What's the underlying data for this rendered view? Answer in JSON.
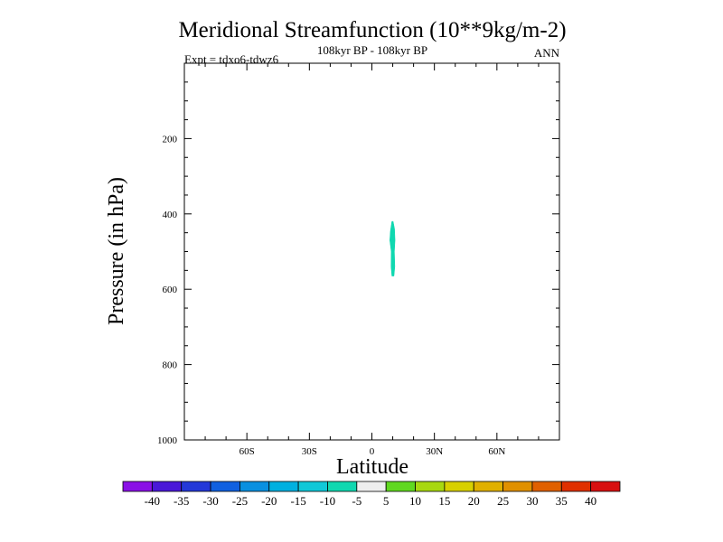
{
  "chart_data": {
    "type": "contour",
    "title": "Meridional Streamfunction (10**9kg/m-2)",
    "subtitle": "108kyr BP - 108kyr BP",
    "left_label": "Expt = tdxo6-tdwz6",
    "right_label": "ANN",
    "xlabel": "Latitude",
    "ylabel": "Pressure (in hPa)",
    "x_ticks": [
      {
        "value": -60,
        "label": "60S"
      },
      {
        "value": -30,
        "label": "30S"
      },
      {
        "value": 0,
        "label": "0"
      },
      {
        "value": 30,
        "label": "30N"
      },
      {
        "value": 60,
        "label": "60N"
      }
    ],
    "y_ticks": [
      {
        "value": 200,
        "label": "200"
      },
      {
        "value": 400,
        "label": "400"
      },
      {
        "value": 600,
        "label": "600"
      },
      {
        "value": 800,
        "label": "800"
      },
      {
        "value": 1000,
        "label": "1000"
      }
    ],
    "xlim": [
      -90,
      90
    ],
    "ylim": [
      0,
      1000
    ],
    "y_inverted": true,
    "colorbar": {
      "levels": [
        "-40",
        "-35",
        "-30",
        "-25",
        "-20",
        "-15",
        "-10",
        "-5",
        "5",
        "10",
        "15",
        "20",
        "25",
        "30",
        "35",
        "40"
      ],
      "colors": [
        "#8a10e6",
        "#4a18d8",
        "#2438d8",
        "#1060e0",
        "#0a90e0",
        "#00b0e0",
        "#10c8d8",
        "#10d8b0",
        "#eeeeee",
        "#60d820",
        "#a8d810",
        "#d8d000",
        "#e0b000",
        "#e09000",
        "#e06000",
        "#e03000",
        "#d81010"
      ]
    },
    "features": [
      {
        "shape": "contour-fill",
        "level_band": "-10 to -5",
        "color": "#10d8b0",
        "outline": [
          [
            10.2,
            420
          ],
          [
            10.9,
            440
          ],
          [
            11.1,
            470
          ],
          [
            10.8,
            500
          ],
          [
            11.0,
            540
          ],
          [
            10.6,
            565
          ],
          [
            9.6,
            565
          ],
          [
            9.2,
            540
          ],
          [
            9.3,
            500
          ],
          [
            8.6,
            470
          ],
          [
            8.9,
            445
          ],
          [
            9.6,
            420
          ]
        ]
      }
    ]
  }
}
